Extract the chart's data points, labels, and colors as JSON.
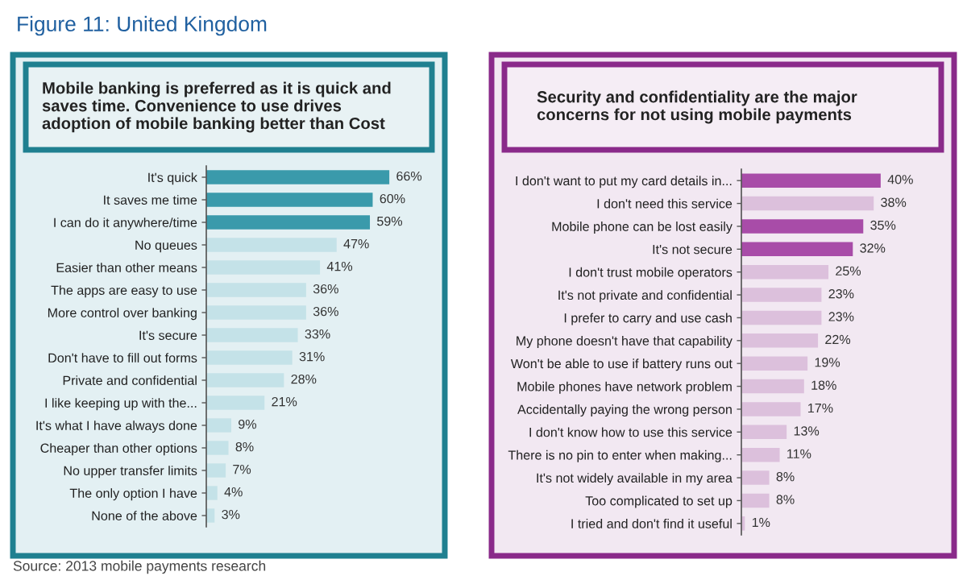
{
  "chart_data": [
    {
      "type": "bar",
      "orientation": "horizontal",
      "title": "Figure 11: United Kingdom",
      "subtitle": "Mobile banking is preferred as it is quick and saves time. Convenience to use drives adoption of mobile banking better than Cost",
      "categories": [
        "It's quick",
        "It saves me time",
        "I can do it anywhere/time",
        "No queues",
        "Easier than other means",
        "The apps are easy to use",
        "More control over banking",
        "It's secure",
        "Don't have to fill out forms",
        "Private and confidential",
        "I like keeping up with the...",
        "It's what I have always done",
        "Cheaper than other options",
        "No upper transfer limits",
        "The only option I have",
        "None of the above"
      ],
      "values": [
        66,
        60,
        59,
        47,
        41,
        36,
        36,
        33,
        31,
        28,
        21,
        9,
        8,
        7,
        4,
        3
      ],
      "colors": [
        "#3a9aab",
        "#3a9aab",
        "#3a9aab",
        "#c4e2e8",
        "#c4e2e8",
        "#c4e2e8",
        "#c4e2e8",
        "#c4e2e8",
        "#c4e2e8",
        "#c4e2e8",
        "#c4e2e8",
        "#c4e2e8",
        "#c4e2e8",
        "#c4e2e8",
        "#c4e2e8",
        "#c4e2e8"
      ],
      "value_labels": [
        "66%",
        "60%",
        "59%",
        "47%",
        "41%",
        "36%",
        "36%",
        "33%",
        "31%",
        "28%",
        "21%",
        "9%",
        "8%",
        "7%",
        "4%",
        "3%"
      ],
      "tick_labels": "y",
      "grid": false,
      "legend": false,
      "annotations": [
        "Source: 2013 mobile payments research"
      ]
    },
    {
      "type": "bar",
      "orientation": "horizontal",
      "subtitle": "Security and confidentiality are the major concerns for not using mobile payments",
      "categories": [
        "I don't want to put my card details in...",
        "I don't need this service",
        "Mobile phone can be lost easily",
        "It's not secure",
        "I don't trust mobile operators",
        "It's not private and confidential",
        "I prefer to carry and use cash",
        "My phone doesn't have that capability",
        "Won't be able to use if battery runs out",
        "Mobile phones have network problem",
        "Accidentally paying the wrong person",
        "I don't know how to use this service",
        "There is no pin to enter when making...",
        "It's not widely available in my area",
        "Too complicated to set up",
        "I tried and don't find it useful"
      ],
      "values": [
        40,
        38,
        35,
        32,
        25,
        23,
        23,
        22,
        19,
        18,
        17,
        13,
        11,
        8,
        8,
        1
      ],
      "colors": [
        "#a84ca8",
        "#dcc0dc",
        "#a84ca8",
        "#a84ca8",
        "#dcc0dc",
        "#dcc0dc",
        "#dcc0dc",
        "#dcc0dc",
        "#dcc0dc",
        "#dcc0dc",
        "#dcc0dc",
        "#dcc0dc",
        "#dcc0dc",
        "#dcc0dc",
        "#dcc0dc",
        "#dcc0dc"
      ],
      "value_labels": [
        "40%",
        "38%",
        "35%",
        "32%",
        "25%",
        "23%",
        "23%",
        "22%",
        "19%",
        "18%",
        "17%",
        "13%",
        "11%",
        "8%",
        "8%",
        "1%"
      ],
      "tick_labels": "y",
      "grid": false,
      "legend": false
    }
  ]
}
